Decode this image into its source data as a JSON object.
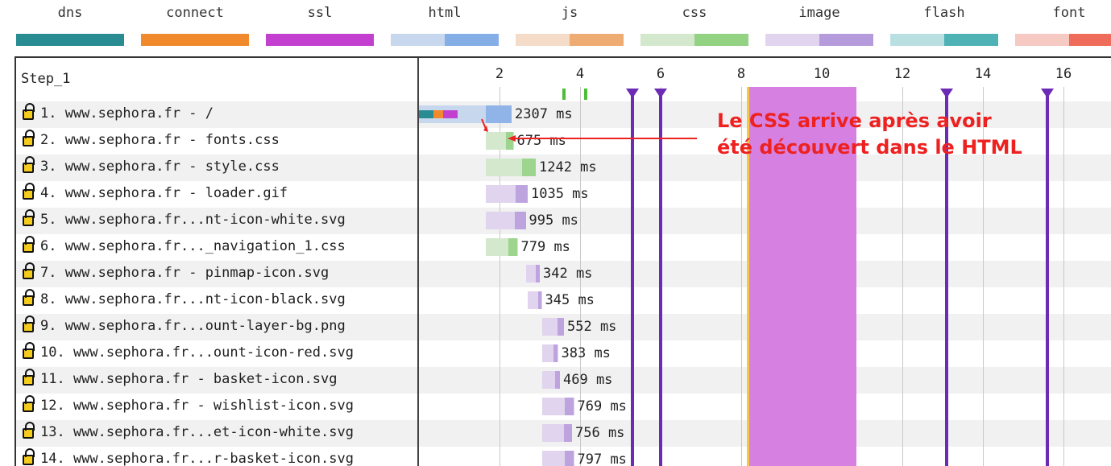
{
  "legend": [
    {
      "label": "dns",
      "color_light": "#2a8c93",
      "color_dark": "#2a8c93"
    },
    {
      "label": "connect",
      "color_light": "#f08a2c",
      "color_dark": "#f08a2c"
    },
    {
      "label": "ssl",
      "color_light": "#c23fd0",
      "color_dark": "#c23fd0"
    },
    {
      "label": "html",
      "color_light": "#c7d8ee",
      "color_dark": "#86aee6"
    },
    {
      "label": "js",
      "color_light": "#f4dcc8",
      "color_dark": "#eeac72"
    },
    {
      "label": "css",
      "color_light": "#d3e8cc",
      "color_dark": "#93d183"
    },
    {
      "label": "image",
      "color_light": "#e0d4ee",
      "color_dark": "#b69bdc"
    },
    {
      "label": "flash",
      "color_light": "#b9dfe0",
      "color_dark": "#4fb3b6"
    },
    {
      "label": "font",
      "color_light": "#f7c9c3",
      "color_dark": "#ef6b5a"
    }
  ],
  "step_title": "Step_1",
  "ticks": [
    "2",
    "4",
    "6",
    "8",
    "10",
    "12",
    "14",
    "16"
  ],
  "colors": {
    "marker": "#6b2bb5",
    "render_band": "#d681e1",
    "annotation": "#ee2121"
  },
  "markers": [
    {
      "t": 5.3
    },
    {
      "t": 6.0
    },
    {
      "t": 13.1
    },
    {
      "t": 15.6
    }
  ],
  "render_band": {
    "start": 8.2,
    "end": 10.85
  },
  "requests": [
    {
      "label": "1. www.sephora.fr - /",
      "duration": "2307 ms",
      "type": "html",
      "start": 0.0,
      "end": 2.3,
      "segments": [
        {
          "kind": "dns",
          "from": 0.0,
          "to": 0.35
        },
        {
          "kind": "connect",
          "from": 0.35,
          "to": 0.6
        },
        {
          "kind": "ssl",
          "from": 0.6,
          "to": 0.95
        }
      ]
    },
    {
      "label": "2. www.sephora.fr - fonts.css",
      "duration": "675 ms",
      "type": "css",
      "start": 1.65,
      "end": 2.35
    },
    {
      "label": "3. www.sephora.fr - style.css",
      "duration": "1242 ms",
      "type": "css",
      "start": 1.65,
      "end": 2.9
    },
    {
      "label": "4. www.sephora.fr - loader.gif",
      "duration": "1035 ms",
      "type": "image",
      "start": 1.65,
      "end": 2.7
    },
    {
      "label": "5. www.sephora.fr...nt-icon-white.svg",
      "duration": "995 ms",
      "type": "image",
      "start": 1.65,
      "end": 2.65
    },
    {
      "label": "6. www.sephora.fr..._navigation_1.css",
      "duration": "779 ms",
      "type": "css",
      "start": 1.65,
      "end": 2.45
    },
    {
      "label": "7. www.sephora.fr - pinmap-icon.svg",
      "duration": "342 ms",
      "type": "image",
      "start": 2.65,
      "end": 3.0
    },
    {
      "label": "8. www.sephora.fr...nt-icon-black.svg",
      "duration": "345 ms",
      "type": "image",
      "start": 2.7,
      "end": 3.05
    },
    {
      "label": "9. www.sephora.fr...ount-layer-bg.png",
      "duration": "552 ms",
      "type": "image",
      "start": 3.05,
      "end": 3.6
    },
    {
      "label": "10. www.sephora.fr...ount-icon-red.svg",
      "duration": "383 ms",
      "type": "image",
      "start": 3.05,
      "end": 3.45
    },
    {
      "label": "11. www.sephora.fr - basket-icon.svg",
      "duration": "469 ms",
      "type": "image",
      "start": 3.05,
      "end": 3.5
    },
    {
      "label": "12. www.sephora.fr - wishlist-icon.svg",
      "duration": "769 ms",
      "type": "image",
      "start": 3.05,
      "end": 3.85
    },
    {
      "label": "13. www.sephora.fr...et-icon-white.svg",
      "duration": "756 ms",
      "type": "image",
      "start": 3.05,
      "end": 3.8
    },
    {
      "label": "14. www.sephora.fr...r-basket-icon.svg",
      "duration": "797 ms",
      "type": "image",
      "start": 3.05,
      "end": 3.85
    }
  ],
  "annotation": {
    "line1": "Le CSS arrive après avoir",
    "line2": "été découvert dans le HTML"
  }
}
